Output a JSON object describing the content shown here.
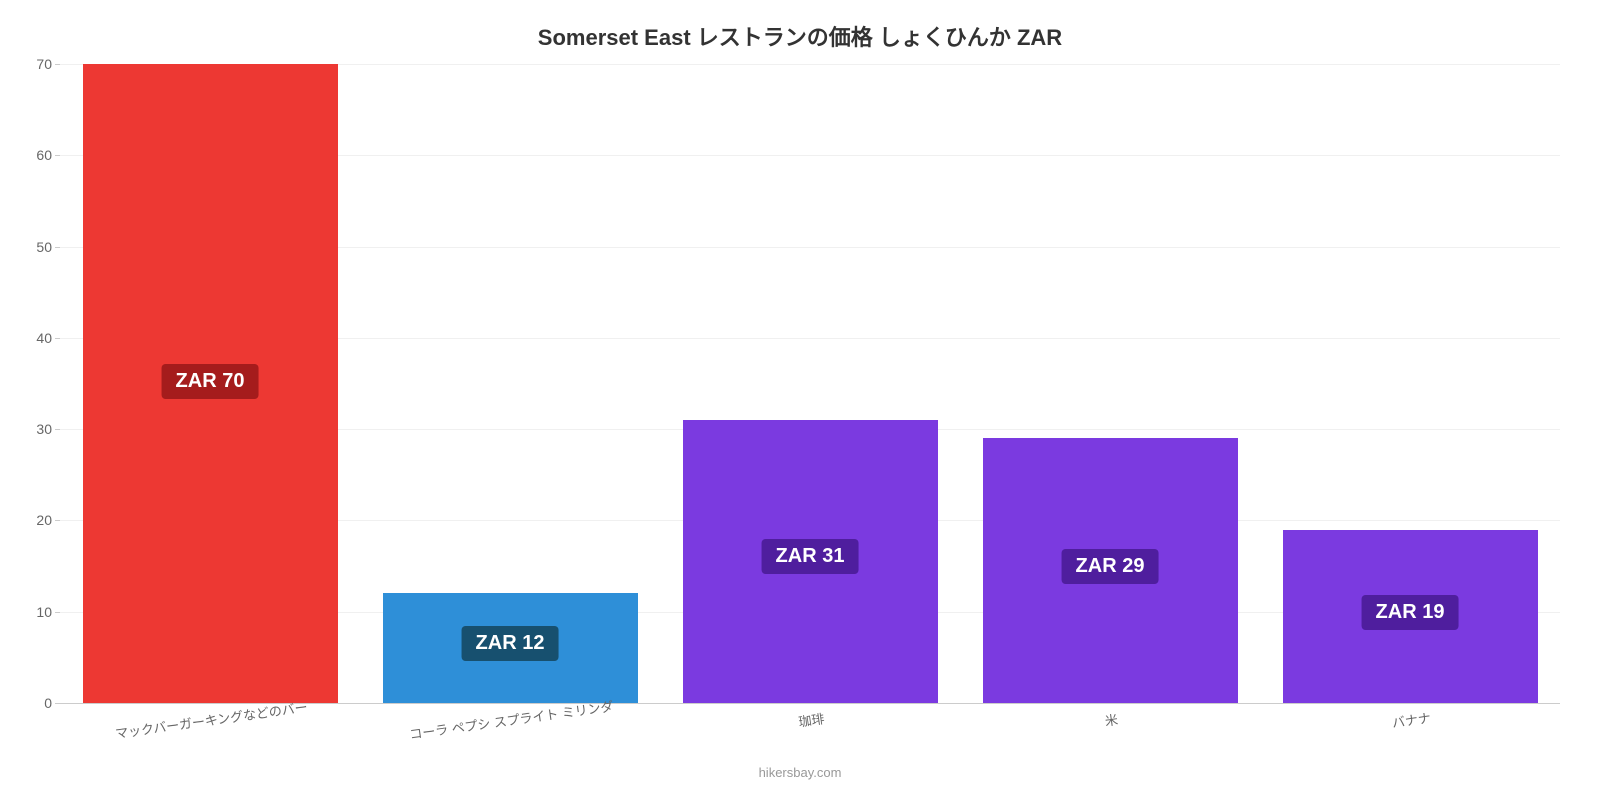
{
  "chart": {
    "type": "bar",
    "title": "Somerset East レストランの価格 しょくひんか ZAR",
    "title_fontsize": 22,
    "title_color": "#333333",
    "background_color": "#ffffff",
    "grid_color": "#f0f0f0",
    "axis_color": "#cccccc",
    "tick_label_color": "#666666",
    "tick_fontsize": 14,
    "ylim_min": 0,
    "ylim_max": 70,
    "ytick_step": 10,
    "yticks": [
      0,
      10,
      20,
      30,
      40,
      50,
      60,
      70
    ],
    "bar_width_ratio": 0.85,
    "categories": [
      "マックバーガーキングなどのバー",
      "コーラ ペプシ スプライト ミリンダ",
      "珈琲",
      "米",
      "バナナ"
    ],
    "values": [
      70,
      12,
      31,
      29,
      19
    ],
    "bar_colors": [
      "#ed3833",
      "#2e8fd8",
      "#7b3ae0",
      "#7b3ae0",
      "#7b3ae0"
    ],
    "badge_colors": [
      "#a51c1c",
      "#17506f",
      "#4f1e9e",
      "#4f1e9e",
      "#4f1e9e"
    ],
    "badge_text_color": "#ffffff",
    "badge_fontsize": 20,
    "value_labels": [
      "ZAR 70",
      "ZAR 12",
      "ZAR 31",
      "ZAR 29",
      "ZAR 19"
    ],
    "badge_anchor_from_top_pct": [
      47,
      30,
      42,
      42,
      38
    ],
    "x_label_rotation_deg": -8,
    "x_label_fontsize": 13,
    "attribution": "hikersbay.com",
    "attribution_color": "#999999",
    "attribution_fontsize": 13
  }
}
